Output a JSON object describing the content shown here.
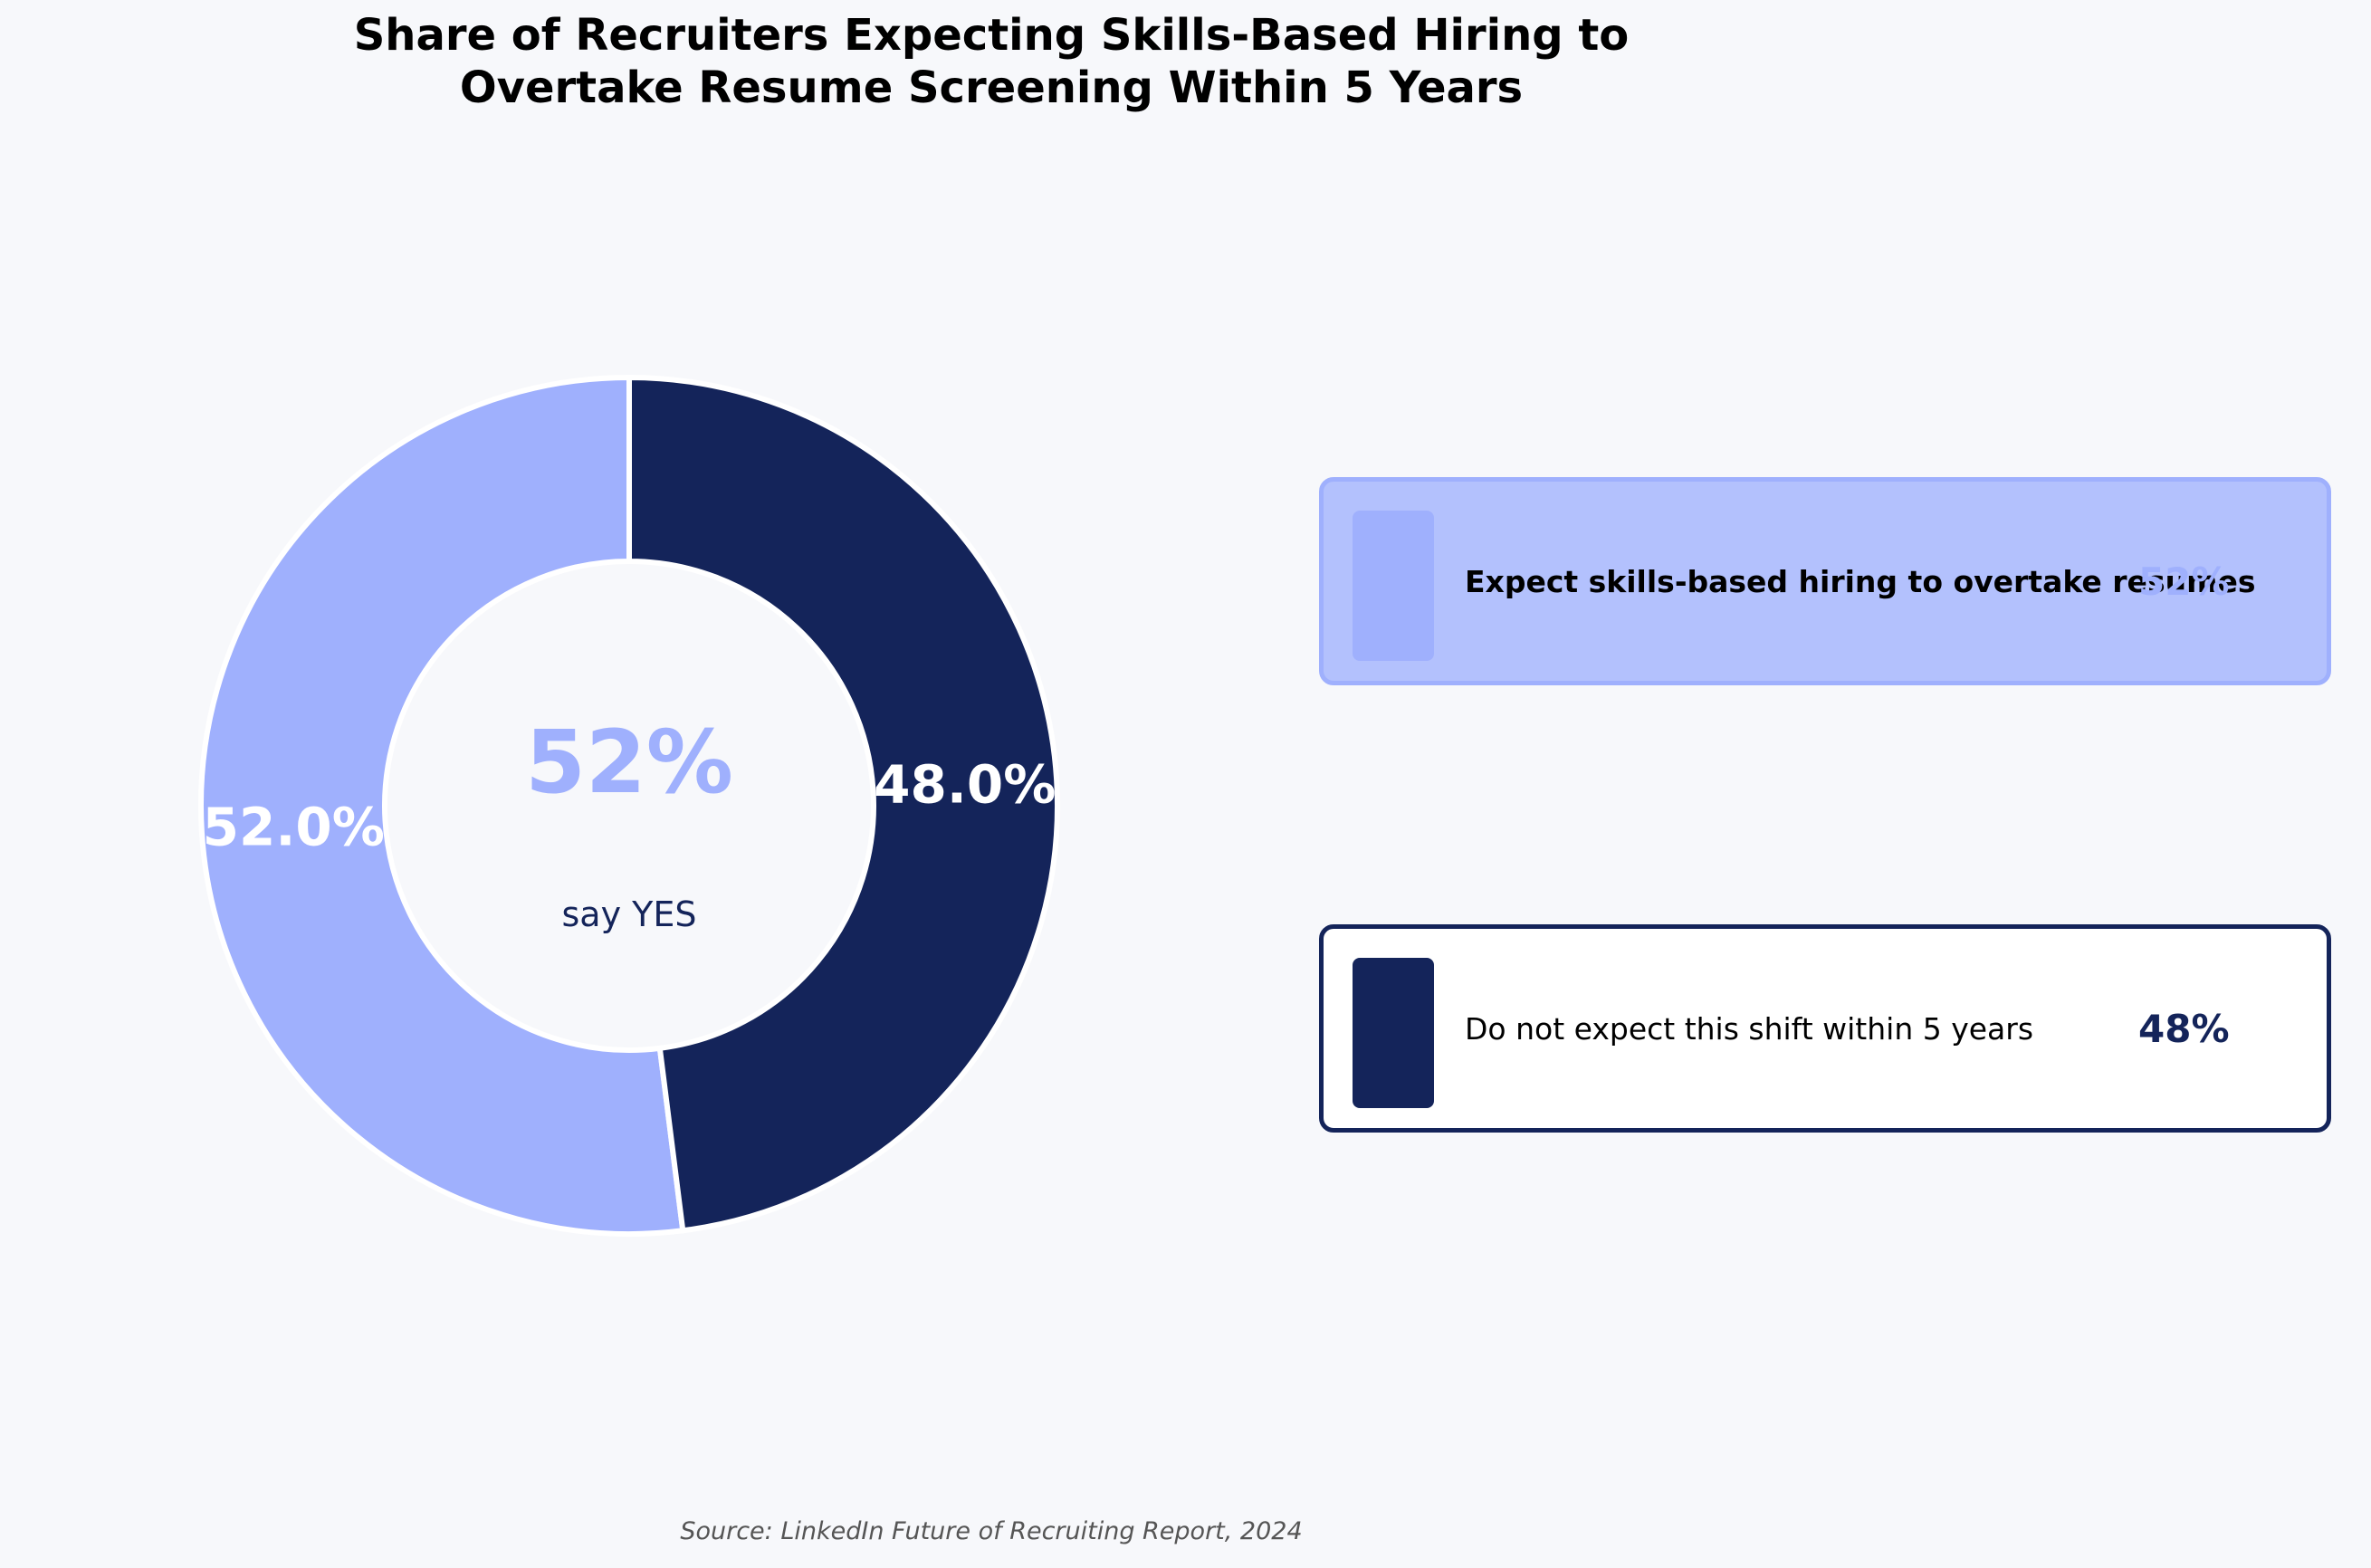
{
  "chart_data": {
    "type": "pie",
    "variant": "donut",
    "title_lines": [
      "Share of Recruiters Expecting Skills-Based Hiring to",
      "Overtake Resume Screening Within 5 Years"
    ],
    "slices": [
      {
        "label": "Expect skills-based hiring to overtake resumes",
        "value": 52.0,
        "display": "52.0%",
        "legend_value": "52%",
        "color": "#9fb0fd"
      },
      {
        "label": "Do not expect this shift within 5 years",
        "value": 48.0,
        "display": "48.0%",
        "legend_value": "48%",
        "color": "#14245a"
      }
    ],
    "center": {
      "big_text": "52%",
      "sub_text": "say YES"
    },
    "legend_placement": "right",
    "source": "Source: LinkedIn Future of Recruiting Report, 2024"
  },
  "colors": {
    "background": "#f7f8fb",
    "yes": "#9fb0fd",
    "no": "#14245a",
    "yes_box_fill": "#b3c1fd",
    "no_box_fill": "#ffffff",
    "slice_label": "#ffffff"
  }
}
